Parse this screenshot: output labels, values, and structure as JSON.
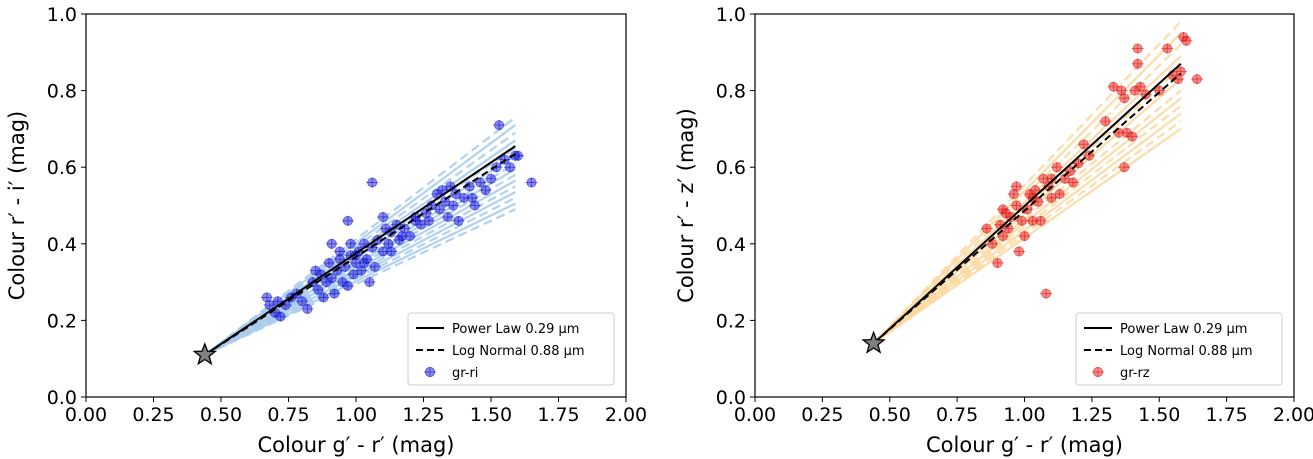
{
  "chart_data": [
    {
      "type": "scatter",
      "xlabel": "Colour g′ - r′ (mag)",
      "ylabel": "Colour r′ - i′ (mag)",
      "xlim": [
        0.0,
        2.0
      ],
      "ylim": [
        0.0,
        1.0
      ],
      "xticks": [
        "0.00",
        "0.25",
        "0.50",
        "0.75",
        "1.00",
        "1.25",
        "1.50",
        "1.75",
        "2.00"
      ],
      "yticks": [
        "0.0",
        "0.2",
        "0.4",
        "0.6",
        "0.8",
        "1.0"
      ],
      "grid": false,
      "legend_position": "bottom-right",
      "legend": [
        {
          "label": "Power Law  0.29 μm",
          "style": "solid"
        },
        {
          "label": "Log Normal  0.88 μm",
          "style": "dashed"
        },
        {
          "label": "gr-ri",
          "style": "marker"
        }
      ],
      "point_color": "#1a1ad6",
      "model_line_color": "#a9cdef",
      "star": {
        "x": 0.44,
        "y": 0.11
      },
      "power_law": {
        "x": [
          0.44,
          1.59
        ],
        "y": [
          0.11,
          0.655
        ]
      },
      "log_normal": {
        "x": [
          0.44,
          1.59
        ],
        "y": [
          0.11,
          0.635
        ]
      },
      "model_end_y": [
        0.73,
        0.71,
        0.69,
        0.67,
        0.65,
        0.63,
        0.61,
        0.595,
        0.58,
        0.565,
        0.55,
        0.535,
        0.52,
        0.505,
        0.49
      ],
      "points": [
        [
          0.67,
          0.26
        ],
        [
          0.68,
          0.24
        ],
        [
          0.7,
          0.22
        ],
        [
          0.71,
          0.25
        ],
        [
          0.72,
          0.21
        ],
        [
          0.74,
          0.24
        ],
        [
          0.76,
          0.26
        ],
        [
          0.78,
          0.27
        ],
        [
          0.8,
          0.25
        ],
        [
          0.82,
          0.23
        ],
        [
          0.84,
          0.3
        ],
        [
          0.85,
          0.33
        ],
        [
          0.86,
          0.28
        ],
        [
          0.87,
          0.32
        ],
        [
          0.88,
          0.26
        ],
        [
          0.89,
          0.3
        ],
        [
          0.9,
          0.35
        ],
        [
          0.91,
          0.31
        ],
        [
          0.92,
          0.27
        ],
        [
          0.93,
          0.33
        ],
        [
          0.94,
          0.36
        ],
        [
          0.95,
          0.3
        ],
        [
          0.96,
          0.34
        ],
        [
          0.97,
          0.29
        ],
        [
          0.98,
          0.37
        ],
        [
          0.99,
          0.32
        ],
        [
          1.0,
          0.35
        ],
        [
          1.01,
          0.38
        ],
        [
          1.02,
          0.33
        ],
        [
          1.03,
          0.4
        ],
        [
          1.04,
          0.36
        ],
        [
          1.05,
          0.3
        ],
        [
          1.06,
          0.39
        ],
        [
          1.07,
          0.34
        ],
        [
          1.08,
          0.41
        ],
        [
          1.1,
          0.38
        ],
        [
          1.11,
          0.44
        ],
        [
          1.12,
          0.4
        ],
        [
          1.13,
          0.43
        ],
        [
          1.15,
          0.45
        ],
        [
          1.16,
          0.41
        ],
        [
          1.18,
          0.44
        ],
        [
          1.2,
          0.42
        ],
        [
          1.22,
          0.47
        ],
        [
          1.24,
          0.45
        ],
        [
          1.26,
          0.48
        ],
        [
          1.28,
          0.5
        ],
        [
          1.3,
          0.53
        ],
        [
          1.31,
          0.49
        ],
        [
          1.32,
          0.54
        ],
        [
          1.33,
          0.51
        ],
        [
          1.35,
          0.55
        ],
        [
          1.36,
          0.5
        ],
        [
          1.37,
          0.53
        ],
        [
          1.38,
          0.46
        ],
        [
          1.4,
          0.52
        ],
        [
          1.42,
          0.55
        ],
        [
          1.44,
          0.5
        ],
        [
          1.46,
          0.56
        ],
        [
          1.48,
          0.54
        ],
        [
          1.5,
          0.57
        ],
        [
          1.52,
          0.6
        ],
        [
          1.53,
          0.71
        ],
        [
          1.55,
          0.62
        ],
        [
          1.57,
          0.6
        ],
        [
          1.59,
          0.63
        ],
        [
          1.6,
          0.63
        ],
        [
          1.65,
          0.56
        ],
        [
          0.97,
          0.46
        ],
        [
          1.06,
          0.56
        ],
        [
          1.1,
          0.47
        ],
        [
          1.22,
          0.46
        ],
        [
          0.91,
          0.4
        ],
        [
          0.94,
          0.38
        ],
        [
          0.98,
          0.4
        ],
        [
          1.0,
          0.37
        ],
        [
          1.03,
          0.35
        ],
        [
          1.13,
          0.38
        ],
        [
          1.17,
          0.42
        ],
        [
          1.27,
          0.46
        ],
        [
          1.34,
          0.47
        ],
        [
          1.43,
          0.52
        ]
      ]
    },
    {
      "type": "scatter",
      "xlabel": "Colour g′ - r′ (mag)",
      "ylabel": "Colour r′ - z′ (mag)",
      "xlim": [
        0.0,
        2.0
      ],
      "ylim": [
        0.0,
        1.0
      ],
      "xticks": [
        "0.00",
        "0.25",
        "0.50",
        "0.75",
        "1.00",
        "1.25",
        "1.50",
        "1.75",
        "2.00"
      ],
      "yticks": [
        "0.0",
        "0.2",
        "0.4",
        "0.6",
        "0.8",
        "1.0"
      ],
      "grid": false,
      "legend_position": "bottom-right",
      "legend": [
        {
          "label": "Power Law  0.29 μm",
          "style": "solid"
        },
        {
          "label": "Log Normal  0.88 μm",
          "style": "dashed"
        },
        {
          "label": "gr-rz",
          "style": "marker"
        }
      ],
      "point_color": "#e41a1a",
      "model_line_color": "#fcd9a0",
      "star": {
        "x": 0.44,
        "y": 0.14
      },
      "power_law": {
        "x": [
          0.44,
          1.58
        ],
        "y": [
          0.14,
          0.87
        ]
      },
      "log_normal": {
        "x": [
          0.44,
          1.58
        ],
        "y": [
          0.14,
          0.845
        ]
      },
      "model_end_y": [
        0.98,
        0.95,
        0.92,
        0.89,
        0.86,
        0.83,
        0.8,
        0.78,
        0.76,
        0.74,
        0.72,
        0.7
      ],
      "points": [
        [
          0.86,
          0.44
        ],
        [
          0.88,
          0.4
        ],
        [
          0.9,
          0.35
        ],
        [
          0.91,
          0.45
        ],
        [
          0.92,
          0.42
        ],
        [
          0.93,
          0.48
        ],
        [
          0.94,
          0.44
        ],
        [
          0.95,
          0.47
        ],
        [
          0.96,
          0.53
        ],
        [
          0.97,
          0.5
        ],
        [
          0.98,
          0.38
        ],
        [
          0.99,
          0.46
        ],
        [
          1.0,
          0.42
        ],
        [
          1.01,
          0.49
        ],
        [
          1.02,
          0.53
        ],
        [
          1.03,
          0.52
        ],
        [
          1.04,
          0.54
        ],
        [
          1.05,
          0.51
        ],
        [
          1.06,
          0.46
        ],
        [
          1.07,
          0.57
        ],
        [
          1.08,
          0.27
        ],
        [
          1.09,
          0.55
        ],
        [
          1.1,
          0.52
        ],
        [
          1.12,
          0.6
        ],
        [
          1.13,
          0.53
        ],
        [
          1.15,
          0.57
        ],
        [
          1.17,
          0.59
        ],
        [
          1.18,
          0.56
        ],
        [
          1.2,
          0.61
        ],
        [
          1.22,
          0.66
        ],
        [
          1.24,
          0.63
        ],
        [
          1.3,
          0.72
        ],
        [
          1.33,
          0.81
        ],
        [
          1.35,
          0.69
        ],
        [
          1.36,
          0.8
        ],
        [
          1.37,
          0.6
        ],
        [
          1.37,
          0.78
        ],
        [
          1.38,
          0.69
        ],
        [
          1.4,
          0.68
        ],
        [
          1.41,
          0.8
        ],
        [
          1.42,
          0.87
        ],
        [
          1.42,
          0.91
        ],
        [
          1.43,
          0.81
        ],
        [
          1.45,
          0.79
        ],
        [
          1.5,
          0.8
        ],
        [
          1.53,
          0.91
        ],
        [
          1.55,
          0.84
        ],
        [
          1.57,
          0.83
        ],
        [
          1.58,
          0.85
        ],
        [
          1.59,
          0.94
        ],
        [
          1.6,
          0.93
        ],
        [
          1.64,
          0.83
        ],
        [
          0.92,
          0.49
        ],
        [
          0.97,
          0.55
        ],
        [
          1.03,
          0.46
        ],
        [
          1.1,
          0.57
        ]
      ]
    }
  ]
}
